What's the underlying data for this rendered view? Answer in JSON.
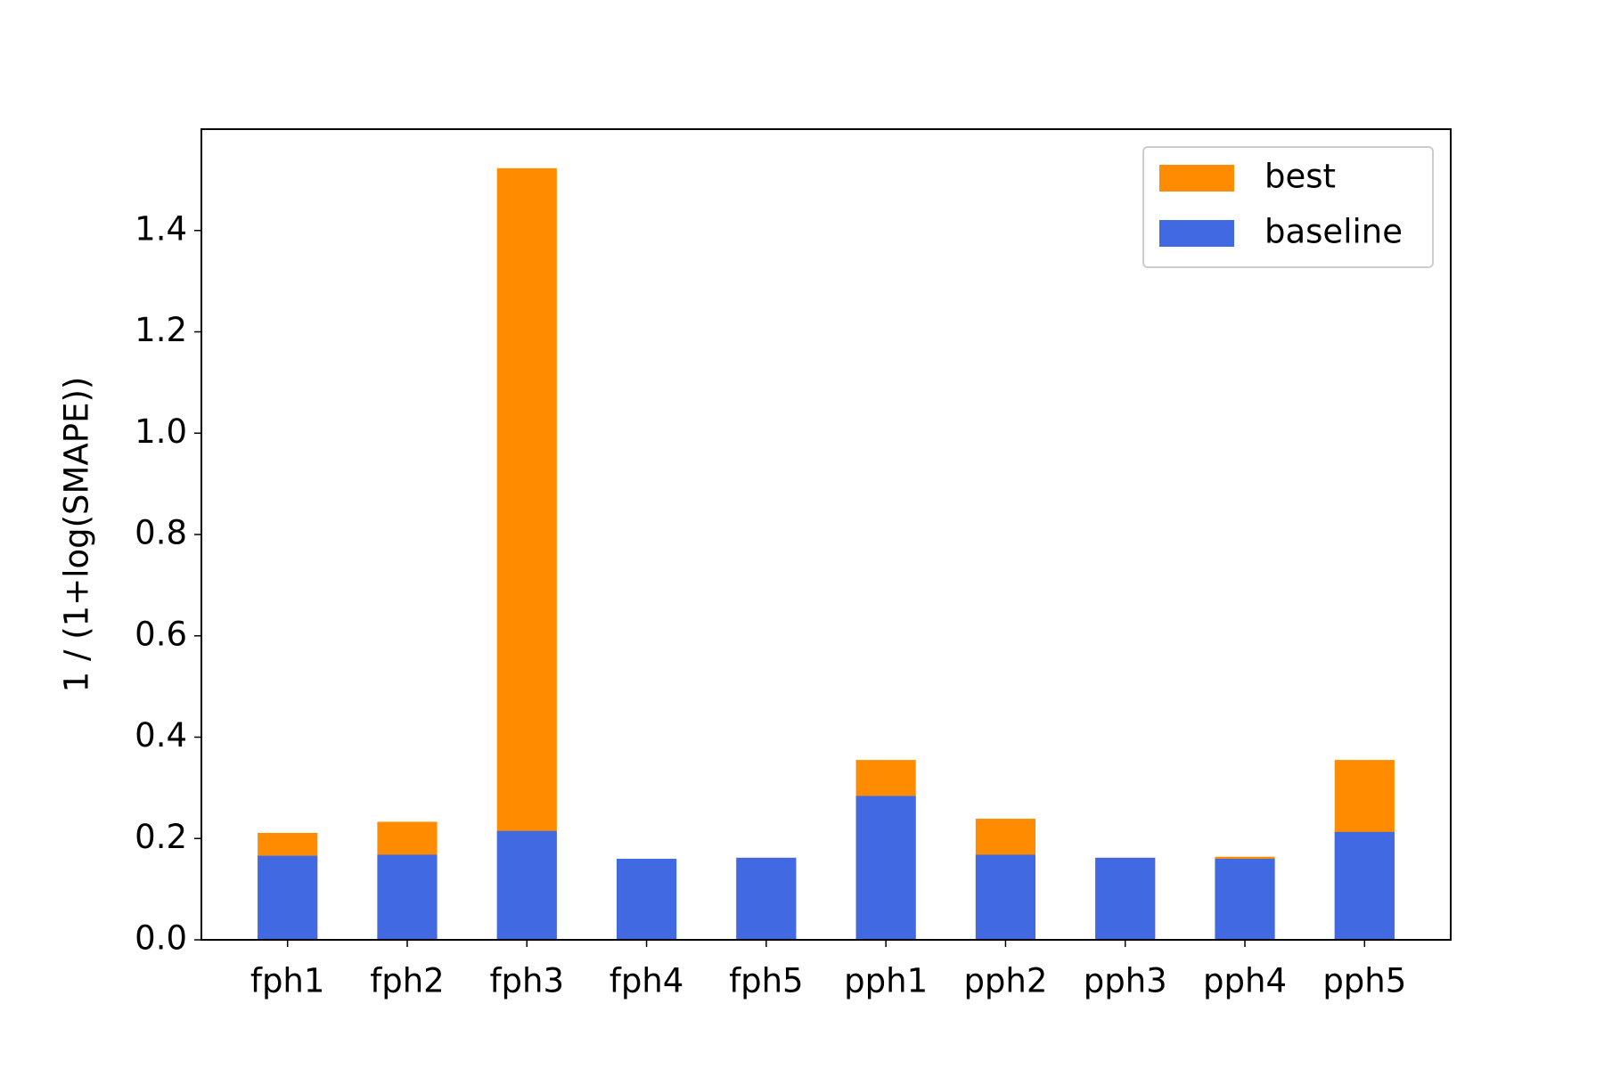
{
  "chart_data": {
    "type": "bar",
    "overlay": true,
    "y_label": "1 / (1+log(SMAPE))",
    "categories": [
      "fph1",
      "fph2",
      "fph3",
      "fph4",
      "fph5",
      "pph1",
      "pph2",
      "pph3",
      "pph4",
      "pph5"
    ],
    "series": [
      {
        "name": "best",
        "color": "#ff8c00",
        "values": [
          0.211,
          0.233,
          1.523,
          0.16,
          0.162,
          0.355,
          0.239,
          0.162,
          0.164,
          0.355
        ]
      },
      {
        "name": "baseline",
        "color": "#4169e1",
        "values": [
          0.166,
          0.168,
          0.215,
          0.16,
          0.162,
          0.284,
          0.168,
          0.162,
          0.16,
          0.213
        ]
      }
    ],
    "ylim": [
      0,
      1.6
    ],
    "yticks": [
      {
        "value": 0,
        "label": "0.0"
      },
      0.2,
      0.4,
      0.6,
      0.8,
      {
        "value": 1,
        "label": "1.0"
      },
      1.2,
      1.4
    ],
    "legend": "upper right"
  }
}
